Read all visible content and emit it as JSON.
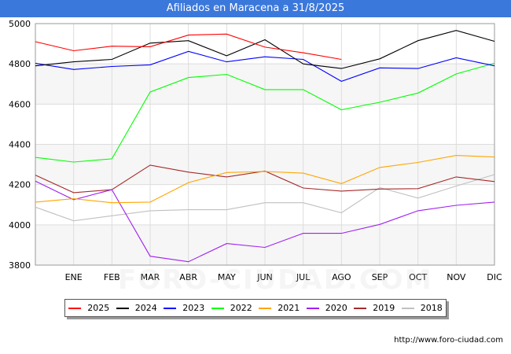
{
  "header": {
    "title": "Afiliados en Maracena a 31/8/2025"
  },
  "footer": {
    "url": "http://www.foro-ciudad.com"
  },
  "watermark": {
    "text": "FORO-CIUDAD.COM"
  },
  "chart_data": {
    "type": "line",
    "title": "Afiliados en Maracena a 31/8/2025",
    "categories": [
      "",
      "ENE",
      "FEB",
      "MAR",
      "ABR",
      "MAY",
      "JUN",
      "JUL",
      "AGO",
      "SEP",
      "OCT",
      "NOV",
      "DIC"
    ],
    "y_ticks": [
      3800,
      4000,
      4200,
      4400,
      4600,
      4800,
      5000
    ],
    "ylim": [
      3800,
      5000
    ],
    "grid": true,
    "legend_position": "bottom",
    "series": [
      {
        "name": "2025",
        "color": "#ff0000",
        "values": [
          4910,
          4865,
          4888,
          4885,
          4943,
          4948,
          4883,
          4855,
          4822,
          null,
          null,
          null,
          null
        ]
      },
      {
        "name": "2024",
        "color": "#000000",
        "values": [
          4790,
          4810,
          4822,
          4903,
          4915,
          4840,
          4920,
          4800,
          4777,
          4825,
          4915,
          4966,
          4912
        ]
      },
      {
        "name": "2023",
        "color": "#0000ff",
        "values": [
          4803,
          4772,
          4787,
          4795,
          4862,
          4810,
          4835,
          4822,
          4713,
          4780,
          4777,
          4830,
          4790
        ]
      },
      {
        "name": "2022",
        "color": "#00ff00",
        "values": [
          4335,
          4312,
          4328,
          4660,
          4732,
          4748,
          4672,
          4672,
          4572,
          4609,
          4655,
          4750,
          4803
        ]
      },
      {
        "name": "2021",
        "color": "#ffa500",
        "values": [
          4113,
          4130,
          4110,
          4113,
          4210,
          4260,
          4265,
          4257,
          4205,
          4285,
          4310,
          4345,
          4337
        ]
      },
      {
        "name": "2020",
        "color": "#a020f0",
        "values": [
          4217,
          4125,
          4175,
          3844,
          3817,
          3907,
          3888,
          3958,
          3958,
          4002,
          4070,
          4097,
          4113
        ]
      },
      {
        "name": "2019",
        "color": "#a52a2a",
        "values": [
          4247,
          4160,
          4175,
          4297,
          4262,
          4238,
          4267,
          4183,
          4168,
          4178,
          4180,
          4238,
          4215
        ]
      },
      {
        "name": "2018",
        "color": "#c0c0c0",
        "values": [
          4088,
          4020,
          4045,
          4070,
          4075,
          4075,
          4110,
          4110,
          4060,
          4185,
          4133,
          4193,
          4250
        ]
      }
    ]
  }
}
